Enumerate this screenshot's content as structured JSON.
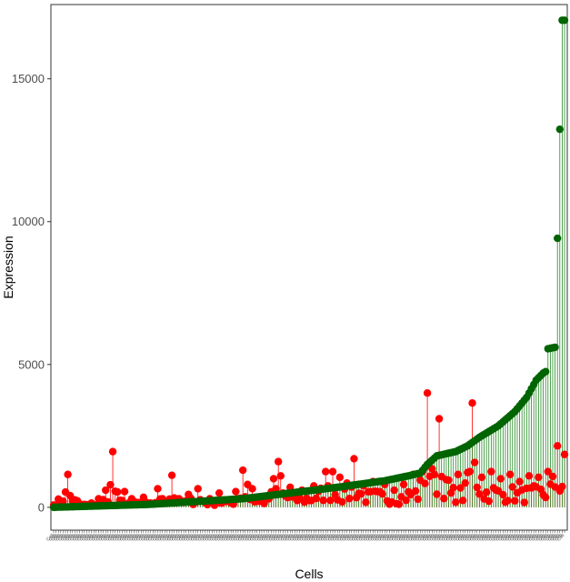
{
  "chart_data": {
    "type": "scatter",
    "subtype": "lollipop",
    "title": "",
    "xlabel": "Cells",
    "ylabel": "Expression",
    "ylim": [
      -800,
      17600
    ],
    "yticks": [
      0,
      5000,
      10000,
      15000
    ],
    "ytick_labels": [
      "0",
      "5000",
      "10000",
      "15000"
    ],
    "grid": false,
    "n_cells": 217,
    "xtick_text": "Cell",
    "series": [
      {
        "name": "",
        "color": "#ff0000",
        "stem_color": "#ff0000",
        "anchors": [
          [
            0,
            80
          ],
          [
            6,
            1150
          ],
          [
            10,
            230
          ],
          [
            16,
            150
          ],
          [
            19,
            300
          ],
          [
            22,
            600
          ],
          [
            25,
            1950
          ],
          [
            28,
            250
          ],
          [
            30,
            550
          ],
          [
            33,
            300
          ],
          [
            38,
            350
          ],
          [
            41,
            150
          ],
          [
            44,
            650
          ],
          [
            46,
            300
          ],
          [
            50,
            1120
          ],
          [
            53,
            300
          ],
          [
            57,
            450
          ],
          [
            61,
            650
          ],
          [
            66,
            300
          ],
          [
            70,
            500
          ],
          [
            74,
            250
          ],
          [
            77,
            550
          ],
          [
            80,
            1300
          ],
          [
            82,
            800
          ],
          [
            84,
            650
          ],
          [
            88,
            350
          ],
          [
            93,
            1000
          ],
          [
            95,
            1600
          ],
          [
            96,
            1100
          ],
          [
            100,
            700
          ],
          [
            105,
            600
          ],
          [
            110,
            750
          ],
          [
            115,
            1250
          ],
          [
            118,
            1250
          ],
          [
            121,
            1050
          ],
          [
            124,
            850
          ],
          [
            127,
            1700
          ],
          [
            131,
            750
          ],
          [
            135,
            900
          ],
          [
            140,
            800
          ],
          [
            144,
            600
          ],
          [
            148,
            800
          ],
          [
            152,
            1150
          ],
          [
            155,
            950
          ],
          [
            158,
            4000
          ],
          [
            161,
            1150
          ],
          [
            163,
            3100
          ],
          [
            167,
            950
          ],
          [
            171,
            1150
          ],
          [
            174,
            850
          ],
          [
            177,
            3650
          ],
          [
            181,
            1050
          ],
          [
            185,
            1250
          ],
          [
            189,
            1000
          ],
          [
            193,
            1150
          ],
          [
            197,
            900
          ],
          [
            201,
            1100
          ],
          [
            205,
            1050
          ],
          [
            209,
            1250
          ],
          [
            213,
            2150
          ],
          [
            216,
            1850
          ]
        ]
      },
      {
        "name": "",
        "color": "#006400",
        "stem_color": "#228b22",
        "anchors": [
          [
            0,
            0
          ],
          [
            40,
            100
          ],
          [
            80,
            300
          ],
          [
            120,
            700
          ],
          [
            140,
            930
          ],
          [
            150,
            1100
          ],
          [
            155,
            1200
          ],
          [
            158,
            1500
          ],
          [
            162,
            1800
          ],
          [
            170,
            1950
          ],
          [
            175,
            2150
          ],
          [
            180,
            2450
          ],
          [
            188,
            2850
          ],
          [
            195,
            3350
          ],
          [
            200,
            3850
          ],
          [
            204,
            4450
          ],
          [
            207,
            4700
          ],
          [
            208,
            4750
          ],
          [
            209,
            5550
          ],
          [
            212,
            5600
          ],
          [
            215,
            17050
          ],
          [
            216,
            17050
          ]
        ]
      }
    ]
  }
}
